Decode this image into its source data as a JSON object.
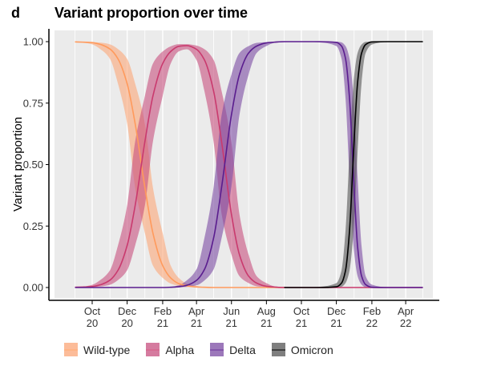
{
  "panel_letter": "d",
  "chart_data": {
    "type": "line",
    "title": "Variant proportion over time",
    "xlabel": "",
    "ylabel": "Variant proportion",
    "ylim": [
      0,
      1
    ],
    "xlim": [
      "2020-08-06",
      "2022-05-15"
    ],
    "yticks": [
      "0.00",
      "0.25",
      "0.50",
      "0.75",
      "1.00"
    ],
    "ytick_values": [
      0,
      0.25,
      0.5,
      0.75,
      1
    ],
    "xticks": [
      {
        "date": "2020-10-01",
        "line1": "Oct",
        "line2": "20"
      },
      {
        "date": "2020-12-01",
        "line1": "Dec",
        "line2": "20"
      },
      {
        "date": "2021-02-01",
        "line1": "Feb",
        "line2": "21"
      },
      {
        "date": "2021-04-01",
        "line1": "Apr",
        "line2": "21"
      },
      {
        "date": "2021-06-01",
        "line1": "Jun",
        "line2": "21"
      },
      {
        "date": "2021-08-01",
        "line1": "Aug",
        "line2": "21"
      },
      {
        "date": "2021-10-01",
        "line1": "Oct",
        "line2": "21"
      },
      {
        "date": "2021-12-01",
        "line1": "Dec",
        "line2": "21"
      },
      {
        "date": "2022-02-01",
        "line1": "Feb",
        "line2": "22"
      },
      {
        "date": "2022-04-01",
        "line1": "Apr",
        "line2": "22"
      }
    ],
    "grid": {
      "vertical_monthly": true,
      "horizontal": false
    },
    "background": "#ebebeb",
    "legend_position": "bottom",
    "x": [
      "2020-09-01",
      "2020-09-15",
      "2020-10-01",
      "2020-10-15",
      "2020-11-01",
      "2020-11-15",
      "2020-12-01",
      "2020-12-15",
      "2021-01-01",
      "2021-01-15",
      "2021-02-01",
      "2021-02-15",
      "2021-03-01",
      "2021-03-15",
      "2021-04-01",
      "2021-04-15",
      "2021-05-01",
      "2021-05-15",
      "2021-06-01",
      "2021-06-15",
      "2021-07-01",
      "2021-07-15",
      "2021-08-01",
      "2021-08-15",
      "2021-09-01",
      "2021-10-01",
      "2021-11-01",
      "2021-12-01",
      "2021-12-10",
      "2021-12-17",
      "2021-12-24",
      "2021-12-31",
      "2022-01-07",
      "2022-01-14",
      "2022-01-21",
      "2022-02-01",
      "2022-03-01",
      "2022-04-01",
      "2022-05-01"
    ],
    "series": [
      {
        "name": "Wild-type",
        "color": "#ff9a5c",
        "ribbon_color": "#fca678",
        "values": [
          0.999,
          0.998,
          0.996,
          0.989,
          0.97,
          0.93,
          0.829,
          0.666,
          0.406,
          0.221,
          0.089,
          0.039,
          0.016,
          0.007,
          0.002,
          0.001,
          0,
          0,
          0,
          0,
          0,
          0,
          0,
          0,
          0,
          null,
          null,
          null,
          null,
          null,
          null,
          null,
          null,
          null,
          null,
          null,
          null,
          null,
          null
        ],
        "lower": [
          0.998,
          0.996,
          0.989,
          0.97,
          0.93,
          0.829,
          0.666,
          0.406,
          0.221,
          0.089,
          0.039,
          0.016,
          0.007,
          0.002,
          0.001,
          0,
          0,
          0,
          0,
          0,
          0,
          0,
          0,
          0,
          0,
          null,
          null,
          null,
          null,
          null,
          null,
          null,
          null,
          null,
          null,
          null,
          null,
          null,
          null
        ],
        "upper": [
          1,
          0.999,
          0.998,
          0.996,
          0.989,
          0.97,
          0.93,
          0.829,
          0.666,
          0.406,
          0.221,
          0.089,
          0.039,
          0.016,
          0.007,
          0.002,
          0.001,
          0,
          0,
          0,
          0,
          0,
          0,
          0,
          0,
          null,
          null,
          null,
          null,
          null,
          null,
          null,
          null,
          null,
          null,
          null,
          null,
          null,
          null
        ]
      },
      {
        "name": "Alpha",
        "color": "#c93a6e",
        "ribbon_color": "#c8507f",
        "values": [
          0.001,
          0.002,
          0.004,
          0.011,
          0.03,
          0.07,
          0.171,
          0.334,
          0.594,
          0.779,
          0.911,
          0.96,
          0.981,
          0.984,
          0.969,
          0.925,
          0.797,
          0.589,
          0.297,
          0.133,
          0.046,
          0.018,
          0.005,
          0.002,
          0,
          0,
          0,
          0,
          0,
          0,
          0,
          0,
          0,
          0,
          0,
          0,
          0,
          0,
          0
        ],
        "lower": [
          0,
          0.001,
          0.002,
          0.004,
          0.011,
          0.03,
          0.07,
          0.171,
          0.334,
          0.594,
          0.779,
          0.911,
          0.96,
          0.969,
          0.925,
          0.797,
          0.589,
          0.297,
          0.133,
          0.046,
          0.018,
          0.005,
          0.002,
          0,
          0,
          0,
          0,
          0,
          0,
          0,
          0,
          0,
          0,
          0,
          0,
          0,
          0,
          0,
          0
        ],
        "upper": [
          0.002,
          0.004,
          0.011,
          0.03,
          0.07,
          0.171,
          0.334,
          0.594,
          0.779,
          0.911,
          0.96,
          0.981,
          0.99,
          0.99,
          0.984,
          0.969,
          0.925,
          0.797,
          0.589,
          0.297,
          0.133,
          0.046,
          0.018,
          0.005,
          0.002,
          0,
          0,
          0,
          0,
          0,
          0,
          0,
          0,
          0,
          0,
          0,
          0,
          0,
          0
        ]
      },
      {
        "name": "Delta",
        "color": "#5a1d8e",
        "ribbon_color": "#7b4ba3",
        "values": [
          0,
          0,
          0,
          0,
          0,
          0,
          0,
          0,
          0,
          0,
          0,
          0.001,
          0.003,
          0.009,
          0.029,
          0.074,
          0.203,
          0.411,
          0.703,
          0.867,
          0.954,
          0.982,
          0.995,
          0.998,
          1,
          1,
          1,
          0.997,
          0.982,
          0.931,
          0.769,
          0.45,
          0.168,
          0.047,
          0.012,
          0.001,
          0,
          0,
          0
        ],
        "lower": [
          0,
          0,
          0,
          0,
          0,
          0,
          0,
          0,
          0,
          0,
          0,
          0,
          0.001,
          0.003,
          0.009,
          0.029,
          0.074,
          0.203,
          0.411,
          0.703,
          0.867,
          0.954,
          0.982,
          0.995,
          0.998,
          1,
          0.997,
          0.982,
          0.931,
          0.769,
          0.45,
          0.168,
          0.047,
          0.012,
          0.001,
          0,
          0,
          0,
          0
        ],
        "upper": [
          0,
          0,
          0,
          0,
          0,
          0,
          0,
          0,
          0,
          0,
          0.001,
          0.003,
          0.009,
          0.029,
          0.074,
          0.203,
          0.411,
          0.703,
          0.867,
          0.954,
          0.982,
          0.995,
          0.998,
          1,
          1,
          1,
          1,
          1,
          0.997,
          0.982,
          0.931,
          0.769,
          0.45,
          0.168,
          0.047,
          0.012,
          0.001,
          0,
          0
        ]
      },
      {
        "name": "Omicron",
        "color": "#000000",
        "ribbon_color": "#555555",
        "values": [
          null,
          null,
          null,
          null,
          null,
          null,
          null,
          null,
          null,
          null,
          null,
          null,
          null,
          null,
          null,
          null,
          null,
          null,
          null,
          null,
          null,
          null,
          null,
          null,
          0,
          0,
          0,
          0.003,
          0.018,
          0.069,
          0.231,
          0.55,
          0.832,
          0.953,
          0.988,
          0.999,
          1,
          1,
          1
        ],
        "lower": [
          null,
          null,
          null,
          null,
          null,
          null,
          null,
          null,
          null,
          null,
          null,
          null,
          null,
          null,
          null,
          null,
          null,
          null,
          null,
          null,
          null,
          null,
          null,
          null,
          0,
          0,
          0,
          0,
          0.003,
          0.018,
          0.069,
          0.231,
          0.55,
          0.832,
          0.953,
          0.988,
          0.999,
          1,
          1
        ],
        "upper": [
          null,
          null,
          null,
          null,
          null,
          null,
          null,
          null,
          null,
          null,
          null,
          null,
          null,
          null,
          null,
          null,
          null,
          null,
          null,
          null,
          null,
          null,
          null,
          null,
          0,
          0,
          0.003,
          0.018,
          0.069,
          0.231,
          0.55,
          0.832,
          0.953,
          0.988,
          0.999,
          1,
          1,
          1,
          1
        ]
      }
    ]
  }
}
